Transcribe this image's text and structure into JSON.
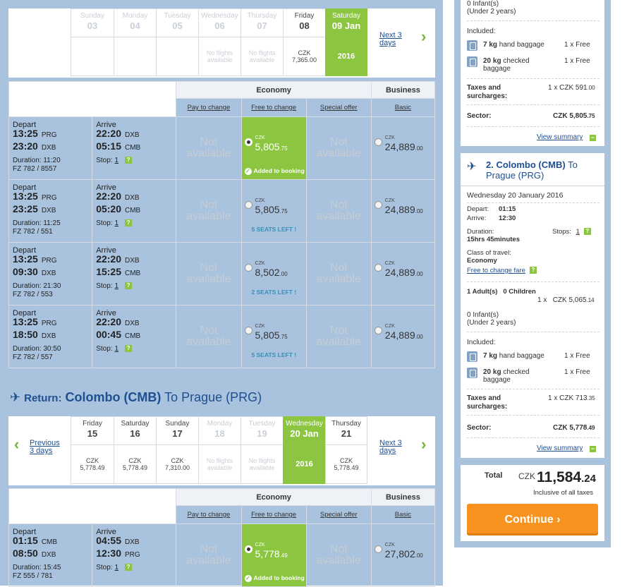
{
  "outbound_dates": {
    "days": [
      {
        "dow": "Sunday",
        "num": "03",
        "text": "",
        "state": "disabled"
      },
      {
        "dow": "Monday",
        "num": "04",
        "text": "",
        "state": "disabled"
      },
      {
        "dow": "Tuesday",
        "num": "05",
        "text": "",
        "state": "disabled"
      },
      {
        "dow": "Wednesday",
        "num": "06",
        "text": "No flights available",
        "state": "disabled"
      },
      {
        "dow": "Thursday",
        "num": "07",
        "text": "No flights available",
        "state": "disabled"
      },
      {
        "dow": "Friday",
        "num": "08",
        "cur": "CZK",
        "price": "7,365.00",
        "state": "normal"
      },
      {
        "dow": "Saturday",
        "num": "09 Jan",
        "year": "2016",
        "state": "selected"
      }
    ],
    "next_label": "Next 3 days"
  },
  "fare_header": {
    "economy": "Economy",
    "business": "Business",
    "col1": "Pay to change",
    "col2": "Free to change",
    "col3": "Special offer",
    "col4": "Basic"
  },
  "outbound_flights": [
    {
      "depart_label": "Depart",
      "dep1": "13:25",
      "ap1": "PRG",
      "dep2": "23:20",
      "ap2": "DXB",
      "arrive_label": "Arrive",
      "arr1": "22:20",
      "ap3": "DXB",
      "arr2": "05:15",
      "ap4": "CMB",
      "duration": "Duration: 11:20",
      "flight": "FZ 782 / 8557",
      "stop_label": "Stop:",
      "stops": "1",
      "na1": "Not available",
      "p2_cur": "CZK",
      "p2_amt": "5,805",
      "p2_dec": ".75",
      "p2_note": "Added to booking",
      "na3": "Not available",
      "p4_cur": "CZK",
      "p4_amt": "24,889",
      "p4_dec": ".00"
    },
    {
      "depart_label": "Depart",
      "dep1": "13:25",
      "ap1": "PRG",
      "dep2": "23:25",
      "ap2": "DXB",
      "arrive_label": "Arrive",
      "arr1": "22:20",
      "ap3": "DXB",
      "arr2": "05:20",
      "ap4": "CMB",
      "duration": "Duration: 11:25",
      "flight": "FZ 782 / 551",
      "stop_label": "Stop:",
      "stops": "1",
      "na1": "Not available",
      "p2_cur": "CZK",
      "p2_amt": "5,805",
      "p2_dec": ".75",
      "p2_note": "5 SEATS LEFT !",
      "na3": "Not available",
      "p4_cur": "CZK",
      "p4_amt": "24,889",
      "p4_dec": ".00"
    },
    {
      "depart_label": "Depart",
      "dep1": "13:25",
      "ap1": "PRG",
      "dep2": "09:30",
      "ap2": "DXB",
      "arrive_label": "Arrive",
      "arr1": "22:20",
      "ap3": "DXB",
      "arr2": "15:25",
      "ap4": "CMB",
      "duration": "Duration: 21:30",
      "flight": "FZ 782 / 553",
      "stop_label": "Stop:",
      "stops": "1",
      "na1": "Not available",
      "p2_cur": "CZK",
      "p2_amt": "8,502",
      "p2_dec": ".00",
      "p2_note": "2 SEATS LEFT !",
      "na3": "Not available",
      "p4_cur": "CZK",
      "p4_amt": "24,889",
      "p4_dec": ".00"
    },
    {
      "depart_label": "Depart",
      "dep1": "13:25",
      "ap1": "PRG",
      "dep2": "18:50",
      "ap2": "DXB",
      "arrive_label": "Arrive",
      "arr1": "22:20",
      "ap3": "DXB",
      "arr2": "00:45",
      "ap4": "CMB",
      "duration": "Duration: 30:50",
      "flight": "FZ 782 / 557",
      "stop_label": "Stop:",
      "stops": "1",
      "na1": "Not available",
      "p2_cur": "CZK",
      "p2_amt": "5,805",
      "p2_dec": ".75",
      "p2_note": "5 SEATS LEFT !",
      "na3": "Not available",
      "p4_cur": "CZK",
      "p4_amt": "24,889",
      "p4_dec": ".00"
    }
  ],
  "return_header": {
    "label": "Return:",
    "from": "Colombo (CMB)",
    "to_word": "To",
    "to": "Prague (PRG)"
  },
  "return_dates": {
    "prev_label": "Previous 3 days",
    "next_label": "Next 3 days",
    "days": [
      {
        "dow": "Friday",
        "num": "15",
        "cur": "CZK",
        "price": "5,778.49",
        "state": "normal"
      },
      {
        "dow": "Saturday",
        "num": "16",
        "cur": "CZK",
        "price": "5,778.49",
        "state": "normal"
      },
      {
        "dow": "Sunday",
        "num": "17",
        "cur": "CZK",
        "price": "7,310.00",
        "state": "normal"
      },
      {
        "dow": "Monday",
        "num": "18",
        "text": "No flights available",
        "state": "disabled"
      },
      {
        "dow": "Tuesday",
        "num": "19",
        "text": "No flights available",
        "state": "disabled"
      },
      {
        "dow": "Wednesday",
        "num": "20 Jan",
        "year": "2016",
        "state": "selected"
      },
      {
        "dow": "Thursday",
        "num": "21",
        "cur": "CZK",
        "price": "5,778.49",
        "state": "normal"
      }
    ]
  },
  "return_flights": [
    {
      "depart_label": "Depart",
      "dep1": "01:15",
      "ap1": "CMB",
      "dep2": "08:50",
      "ap2": "DXB",
      "arrive_label": "Arrive",
      "arr1": "04:55",
      "ap3": "DXB",
      "arr2": "12:30",
      "ap4": "PRG",
      "duration": "Duration: 15:45",
      "flight": "FZ 555 / 781",
      "stop_label": "Stop:",
      "stops": "1",
      "na1": "Not available",
      "p2_cur": "CZK",
      "p2_amt": "5,778",
      "p2_dec": ".49",
      "p2_note": "Added to booking",
      "na3": "Not available",
      "p4_cur": "CZK",
      "p4_amt": "27,802",
      "p4_dec": ".00"
    }
  ],
  "sidebar1": {
    "infants": "0 Infant(s)",
    "infants_sub": "(Under 2 years)",
    "included": "Included:",
    "bag1_kg": "7 kg",
    "bag1_txt": "hand baggage",
    "bag1_val": "1 x Free",
    "bag2_kg": "20 kg",
    "bag2_txt": "checked baggage",
    "bag2_val": "1 x Free",
    "taxes_label": "Taxes and surcharges:",
    "taxes_val": "1 x CZK 591",
    "taxes_dec": ".00",
    "sector_label": "Sector:",
    "sector_val": "CZK 5,805",
    "sector_dec": ".75",
    "view_summary": "View summary"
  },
  "sidebar2": {
    "num": "2.",
    "from": "Colombo (CMB)",
    "to_word": "To",
    "to": "Prague (PRG)",
    "date": "Wednesday 20 January 2016",
    "depart_label": "Depart:",
    "depart": "01:15",
    "arrive_label": "Arrive:",
    "arrive": "12:30",
    "duration_label": "Duration:",
    "duration": "15hrs 45minutes",
    "stops_label": "Stops:",
    "stops": "1",
    "class_label": "Class of travel:",
    "class": "Economy",
    "fare_link": "Free to change fare",
    "adults": "1 Adult(s)   0 Children",
    "adult_price_qty": "1 x",
    "adult_price": "CZK 5,065",
    "adult_price_dec": ".14",
    "infants": "0 Infant(s)",
    "infants_sub": "(Under 2 years)",
    "included": "Included:",
    "bag1_kg": "7 kg",
    "bag1_txt": "hand baggage",
    "bag1_val": "1 x Free",
    "bag2_kg": "20 kg",
    "bag2_txt": "checked baggage",
    "bag2_val": "1 x Free",
    "taxes_label": "Taxes and surcharges:",
    "taxes_val": "1 x CZK 713",
    "taxes_dec": ".35",
    "sector_label": "Sector:",
    "sector_val": "CZK 5,778",
    "sector_dec": ".49",
    "view_summary": "View summary"
  },
  "total": {
    "label": "Total",
    "cur": "CZK",
    "amount": "11,584",
    "dec": ".24",
    "note": "Inclusive of all taxes",
    "continue": "Continue"
  },
  "colors": {
    "green": "#8cc641",
    "blue": "#1d4f91",
    "orange": "#f7931e",
    "panel": "#a9c3de"
  }
}
